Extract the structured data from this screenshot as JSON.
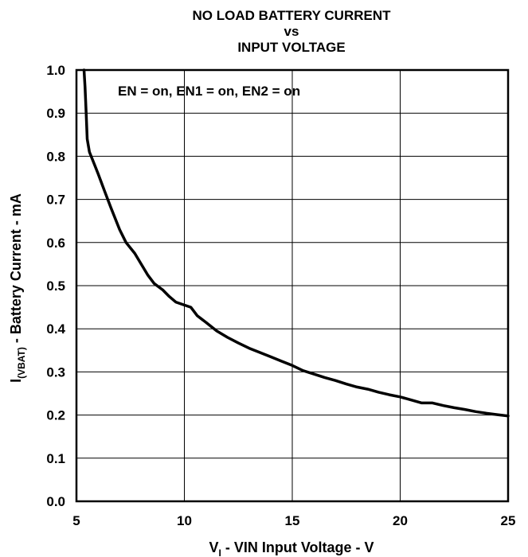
{
  "chart_data": {
    "type": "line",
    "title_lines": [
      "NO LOAD BATTERY CURRENT",
      "vs",
      "INPUT VOLTAGE"
    ],
    "xlabel": {
      "prefix": "V",
      "sub": "I",
      "text": " - VIN Input Voltage - V"
    },
    "ylabel": {
      "prefix": "I",
      "sub": "(VBAT)",
      "text": " - Battery Current - mA"
    },
    "annotation": "EN = on, EN1 = on, EN2 = on",
    "xlim": [
      5,
      25
    ],
    "ylim": [
      0.0,
      1.0
    ],
    "xticks": [
      5,
      10,
      15,
      20,
      25
    ],
    "yticks": [
      0.0,
      0.1,
      0.2,
      0.3,
      0.4,
      0.5,
      0.6,
      0.7,
      0.8,
      0.9,
      1.0
    ],
    "xtick_labels": [
      "5",
      "10",
      "15",
      "20",
      "25"
    ],
    "ytick_labels": [
      "0.0",
      "0.1",
      "0.2",
      "0.3",
      "0.4",
      "0.5",
      "0.6",
      "0.7",
      "0.8",
      "0.9",
      "1.0"
    ],
    "grid": true,
    "series": [
      {
        "color": "#000000",
        "x": [
          5.35,
          5.4,
          5.45,
          5.5,
          5.6,
          5.8,
          6.0,
          6.3,
          6.6,
          7.0,
          7.3,
          7.7,
          8.0,
          8.3,
          8.6,
          9.0,
          9.3,
          9.6,
          10.0,
          10.3,
          10.6,
          11.0,
          11.5,
          12.0,
          12.5,
          13.0,
          13.5,
          14.0,
          14.5,
          15.0,
          15.5,
          16.0,
          16.5,
          17.0,
          17.5,
          18.0,
          18.5,
          19.0,
          19.5,
          20.0,
          20.5,
          21.0,
          21.5,
          22.0,
          22.5,
          23.0,
          23.5,
          24.0,
          24.5,
          25.0
        ],
        "y": [
          1.0,
          0.96,
          0.9,
          0.84,
          0.81,
          0.785,
          0.76,
          0.72,
          0.68,
          0.63,
          0.6,
          0.575,
          0.55,
          0.525,
          0.505,
          0.49,
          0.475,
          0.462,
          0.455,
          0.45,
          0.43,
          0.415,
          0.395,
          0.38,
          0.367,
          0.355,
          0.345,
          0.335,
          0.325,
          0.315,
          0.303,
          0.295,
          0.287,
          0.28,
          0.272,
          0.265,
          0.26,
          0.253,
          0.247,
          0.242,
          0.235,
          0.228,
          0.228,
          0.222,
          0.217,
          0.213,
          0.208,
          0.204,
          0.201,
          0.198
        ]
      }
    ]
  }
}
